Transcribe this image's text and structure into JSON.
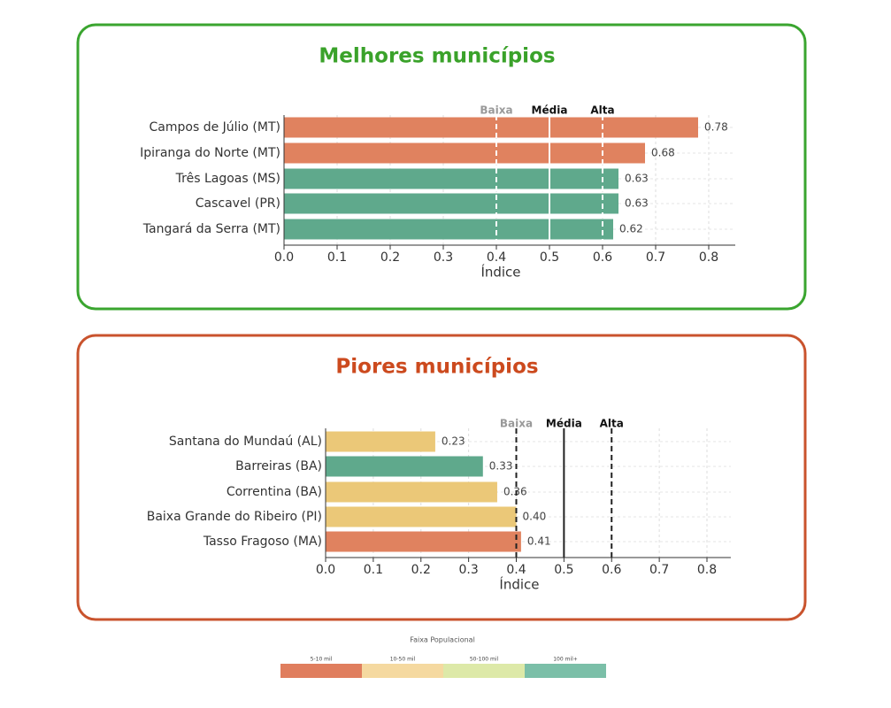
{
  "chart_data": [
    {
      "type": "barh",
      "title": "Melhores municípios",
      "xlabel": "Índice",
      "categories": [
        "Campos de Júlio (MT)",
        "Ipiranga do Norte (MT)",
        "Três Lagoas (MS)",
        "Cascavel (PR)",
        "Tangará da Serra (MT)"
      ],
      "values": [
        0.78,
        0.68,
        0.63,
        0.63,
        0.62
      ],
      "colors": [
        "#e0825f",
        "#e0825f",
        "#5fa98c",
        "#5fa98c",
        "#5fa98c"
      ],
      "xlim": [
        0,
        0.85
      ],
      "xticks": [
        {
          "value": 0,
          "label": "0.0"
        },
        0.1,
        0.2,
        0.3,
        0.4,
        0.5,
        0.6,
        0.7,
        0.8
      ],
      "grid": true,
      "ref_lines": [
        {
          "label": "Baixa",
          "value": 0.4,
          "style": "dashed",
          "color": "#ffffff",
          "label_color": "#999999"
        },
        {
          "label": "Média",
          "value": 0.5,
          "style": "solid",
          "color": "#ffffff",
          "label_color": "#111111"
        },
        {
          "label": "Alta",
          "value": 0.6,
          "style": "dashed",
          "color": "#ffffff",
          "label_color": "#111111"
        }
      ]
    },
    {
      "type": "barh",
      "title": "Piores municípios",
      "xlabel": "Índice",
      "categories": [
        "Santana do Mundaú (AL)",
        "Barreiras (BA)",
        "Correntina (BA)",
        "Baixa Grande do Ribeiro (PI)",
        "Tasso Fragoso (MA)"
      ],
      "values": [
        0.23,
        0.33,
        0.36,
        0.4,
        0.41
      ],
      "value_labels": [
        "0.23",
        "0.33",
        "0.36",
        "0.40",
        "0.41"
      ],
      "colors": [
        "#ebc878",
        "#5fa98c",
        "#ebc878",
        "#ebc878",
        "#e0825f"
      ],
      "xlim": [
        0,
        0.85
      ],
      "xticks": [
        {
          "value": 0,
          "label": "0.0"
        },
        0.1,
        0.2,
        0.3,
        0.4,
        0.5,
        0.6,
        0.7,
        0.8
      ],
      "grid": true,
      "ref_lines": [
        {
          "label": "Baixa",
          "value": 0.4,
          "style": "dashed",
          "color": "#222222",
          "label_color": "#999999"
        },
        {
          "label": "Média",
          "value": 0.5,
          "style": "solid",
          "color": "#222222",
          "label_color": "#111111"
        },
        {
          "label": "Alta",
          "value": 0.6,
          "style": "dashed",
          "color": "#222222",
          "label_color": "#111111"
        }
      ]
    }
  ],
  "legend": {
    "title": "Faixa Populacional",
    "items": [
      {
        "label": "5-10 mil",
        "color": "#e07e5e"
      },
      {
        "label": "10-50 mil",
        "color": "#f5d9a0"
      },
      {
        "label": "50-100 mil",
        "color": "#dde9a8"
      },
      {
        "label": "100 mil+",
        "color": "#7bbfa8"
      }
    ]
  }
}
